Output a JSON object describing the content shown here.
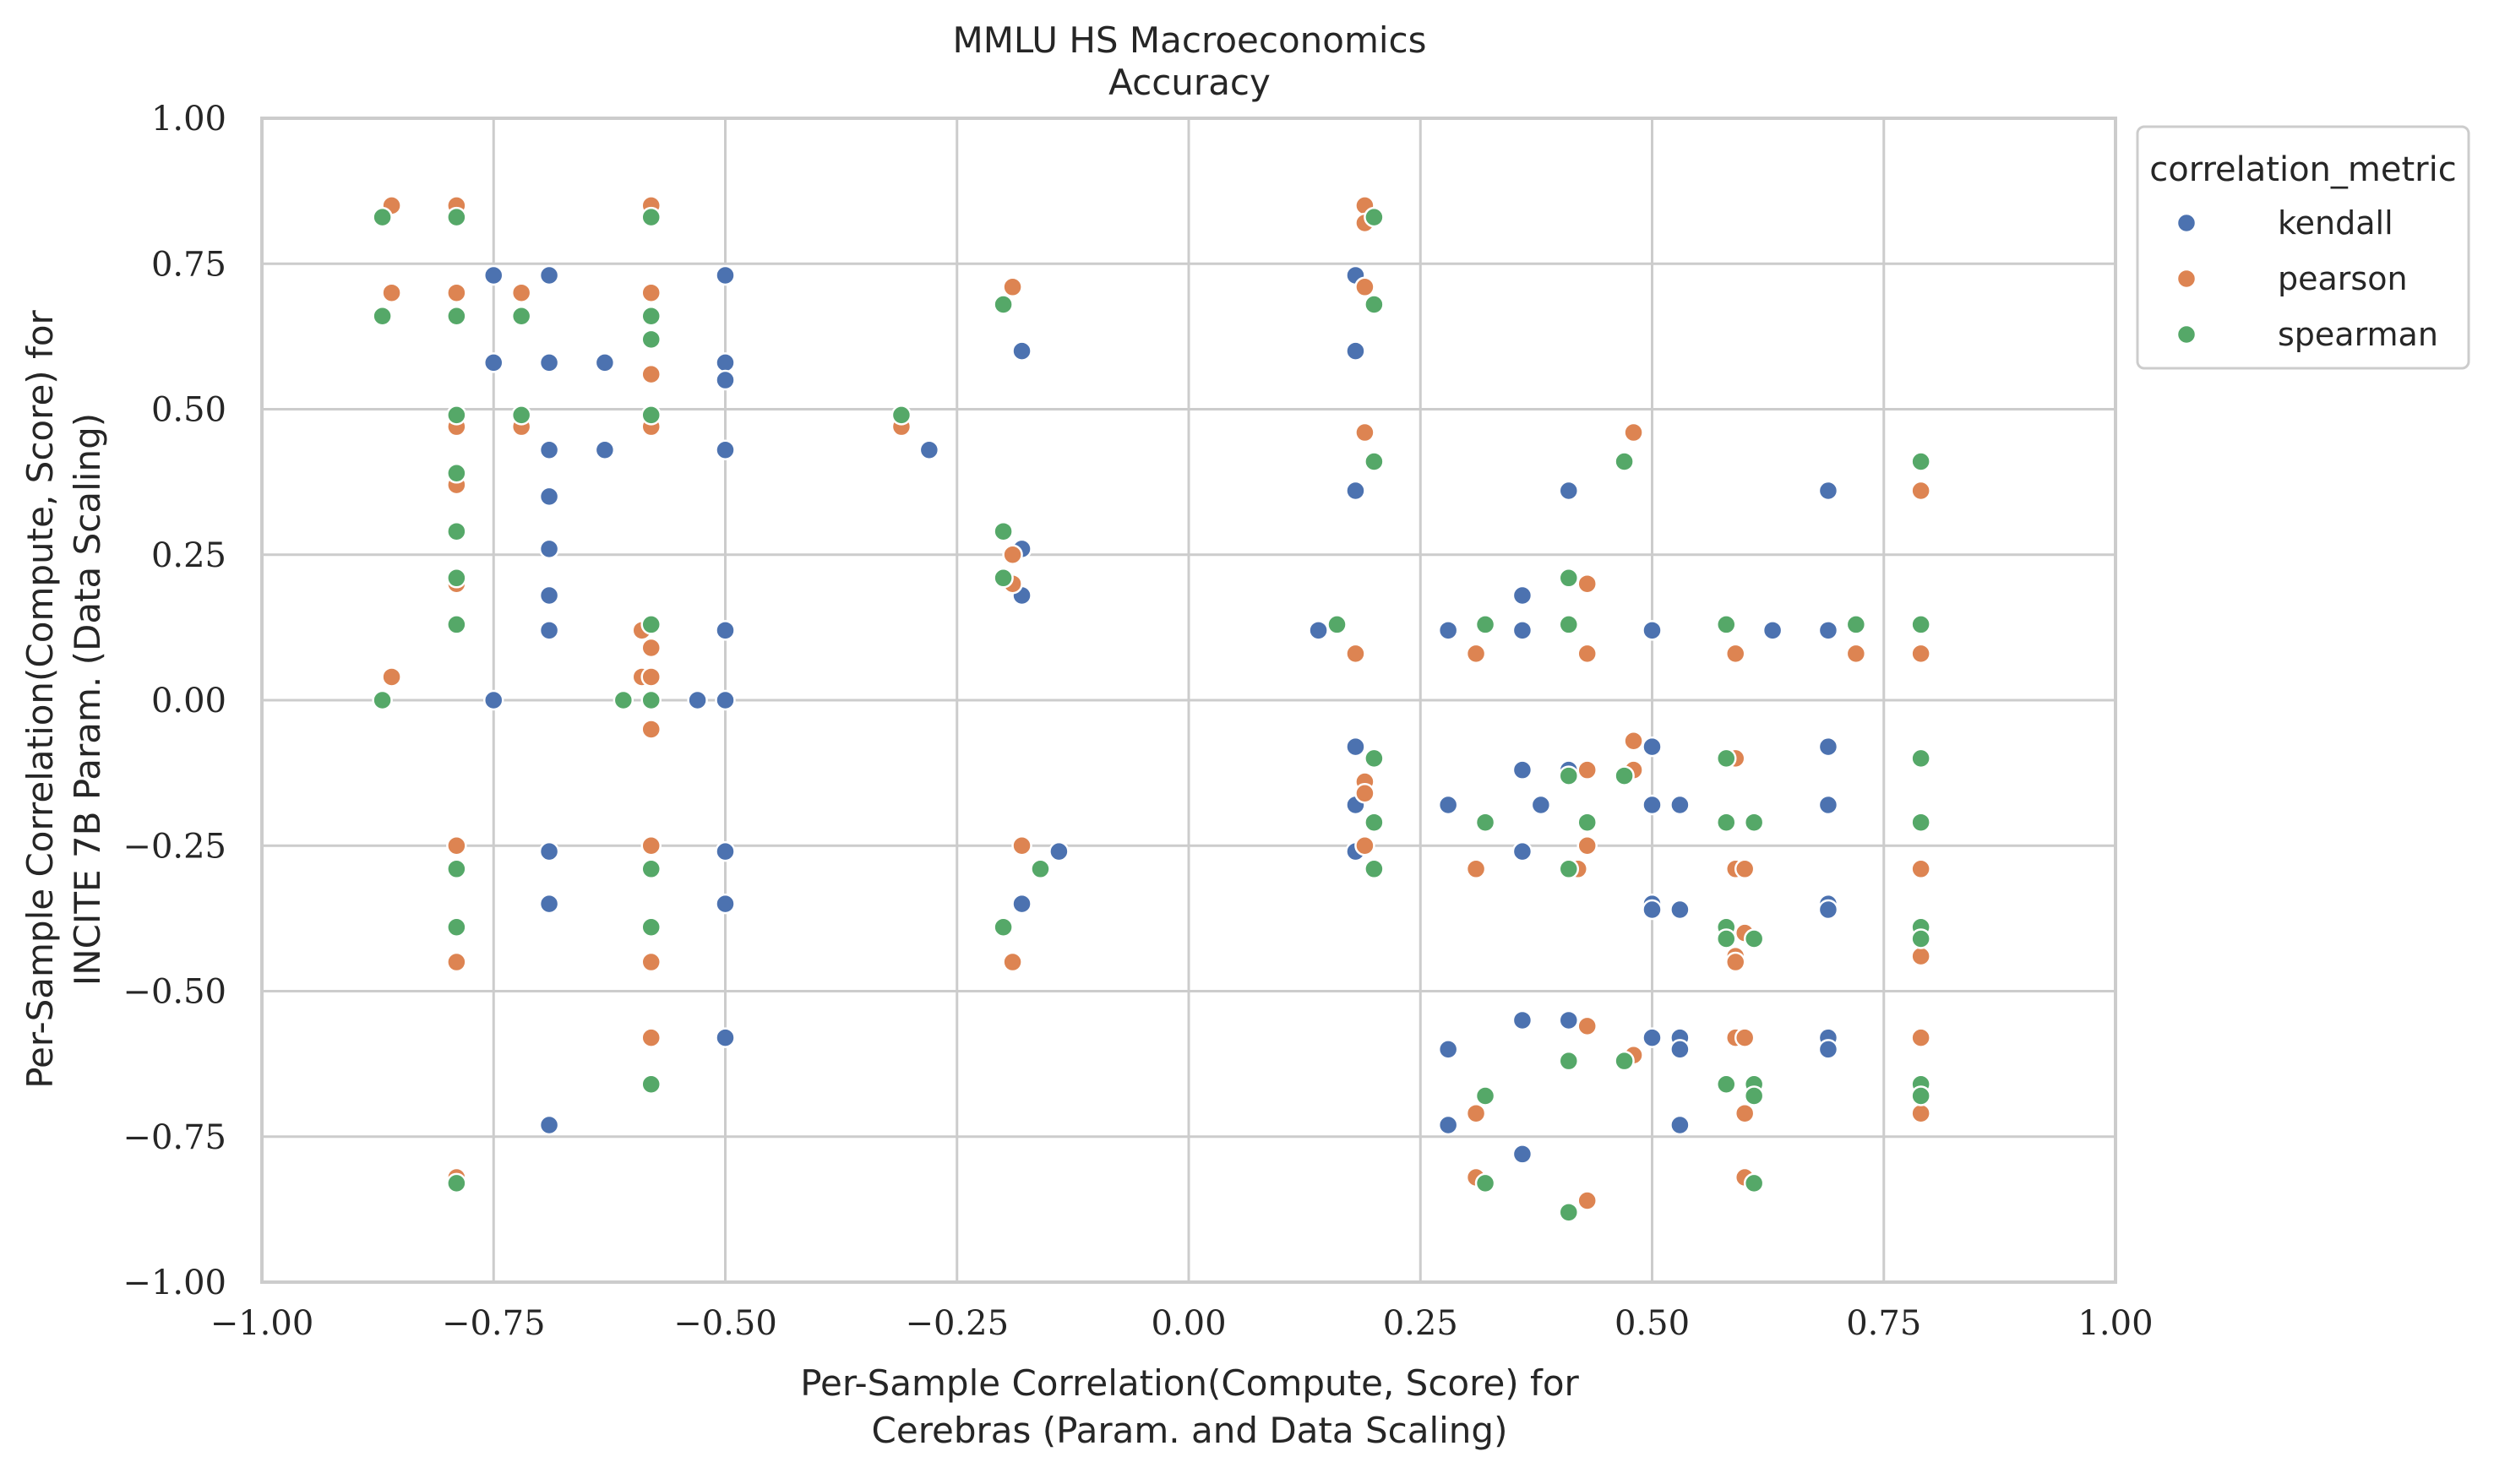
{
  "chart_data": {
    "type": "scatter",
    "title_lines": [
      "MMLU HS Macroeconomics",
      "Accuracy"
    ],
    "xlabel_lines": [
      "Per-Sample Correlation(Compute, Score) for",
      "Cerebras (Param. and Data Scaling)"
    ],
    "ylabel_lines": [
      "Per-Sample Correlation(Compute, Score) for",
      "INCITE 7B Param. (Data Scaling)"
    ],
    "xlim": [
      -1.0,
      1.0
    ],
    "ylim": [
      -1.0,
      1.0
    ],
    "xticks": [
      -1.0,
      -0.75,
      -0.5,
      -0.25,
      0.0,
      0.25,
      0.5,
      0.75,
      1.0
    ],
    "yticks": [
      -1.0,
      -0.75,
      -0.5,
      -0.25,
      0.0,
      0.25,
      0.5,
      0.75,
      1.0
    ],
    "xtick_labels": [
      "−1.00",
      "−0.75",
      "−0.50",
      "−0.25",
      "0.00",
      "0.25",
      "0.50",
      "0.75",
      "1.00"
    ],
    "ytick_labels": [
      "−1.00",
      "−0.75",
      "−0.50",
      "−0.25",
      "0.00",
      "0.25",
      "0.50",
      "0.75",
      "1.00"
    ],
    "grid": true,
    "legend": {
      "title": "correlation_metric",
      "placement": "outside-top-right"
    },
    "series": [
      {
        "name": "kendall",
        "color": "#4c72b0",
        "points": [
          [
            -0.75,
            0.73
          ],
          [
            -0.69,
            0.73
          ],
          [
            -0.5,
            0.73
          ],
          [
            -0.75,
            0.58
          ],
          [
            -0.69,
            0.58
          ],
          [
            -0.63,
            0.58
          ],
          [
            -0.5,
            0.58
          ],
          [
            -0.5,
            0.55
          ],
          [
            -0.69,
            0.43
          ],
          [
            -0.63,
            0.43
          ],
          [
            -0.5,
            0.43
          ],
          [
            -0.69,
            0.35
          ],
          [
            -0.69,
            0.26
          ],
          [
            -0.69,
            0.18
          ],
          [
            -0.69,
            0.12
          ],
          [
            -0.5,
            0.12
          ],
          [
            -0.75,
            0.0
          ],
          [
            -0.53,
            0.0
          ],
          [
            -0.5,
            0.0
          ],
          [
            -0.69,
            -0.26
          ],
          [
            -0.5,
            -0.26
          ],
          [
            -0.69,
            -0.35
          ],
          [
            -0.5,
            -0.35
          ],
          [
            -0.5,
            -0.58
          ],
          [
            -0.69,
            -0.73
          ],
          [
            -0.28,
            0.43
          ],
          [
            -0.18,
            0.6
          ],
          [
            -0.18,
            0.26
          ],
          [
            -0.18,
            0.18
          ],
          [
            -0.14,
            -0.26
          ],
          [
            -0.18,
            -0.35
          ],
          [
            0.18,
            0.73
          ],
          [
            0.18,
            0.6
          ],
          [
            0.18,
            0.36
          ],
          [
            0.14,
            0.12
          ],
          [
            0.18,
            -0.08
          ],
          [
            0.18,
            -0.18
          ],
          [
            0.18,
            -0.26
          ],
          [
            0.28,
            0.12
          ],
          [
            0.28,
            -0.18
          ],
          [
            0.28,
            -0.6
          ],
          [
            0.28,
            -0.73
          ],
          [
            0.36,
            0.18
          ],
          [
            0.36,
            0.12
          ],
          [
            0.36,
            -0.12
          ],
          [
            0.36,
            -0.26
          ],
          [
            0.38,
            -0.18
          ],
          [
            0.36,
            -0.55
          ],
          [
            0.36,
            -0.78
          ],
          [
            0.41,
            0.36
          ],
          [
            0.41,
            -0.12
          ],
          [
            0.41,
            -0.55
          ],
          [
            0.5,
            0.12
          ],
          [
            0.5,
            -0.08
          ],
          [
            0.5,
            -0.18
          ],
          [
            0.5,
            -0.35
          ],
          [
            0.5,
            -0.36
          ],
          [
            0.53,
            -0.18
          ],
          [
            0.53,
            -0.36
          ],
          [
            0.5,
            -0.58
          ],
          [
            0.53,
            -0.58
          ],
          [
            0.53,
            -0.6
          ],
          [
            0.53,
            -0.73
          ],
          [
            0.63,
            0.12
          ],
          [
            0.69,
            0.36
          ],
          [
            0.69,
            0.12
          ],
          [
            0.69,
            -0.08
          ],
          [
            0.69,
            -0.18
          ],
          [
            0.69,
            -0.35
          ],
          [
            0.69,
            -0.36
          ],
          [
            0.69,
            -0.58
          ],
          [
            0.69,
            -0.6
          ]
        ]
      },
      {
        "name": "pearson",
        "color": "#dd8452",
        "points": [
          [
            -0.86,
            0.85
          ],
          [
            -0.79,
            0.85
          ],
          [
            -0.58,
            0.85
          ],
          [
            -0.86,
            0.7
          ],
          [
            -0.79,
            0.7
          ],
          [
            -0.72,
            0.7
          ],
          [
            -0.58,
            0.7
          ],
          [
            -0.58,
            0.56
          ],
          [
            -0.79,
            0.47
          ],
          [
            -0.72,
            0.47
          ],
          [
            -0.58,
            0.47
          ],
          [
            -0.79,
            0.38
          ],
          [
            -0.79,
            0.37
          ],
          [
            -0.79,
            0.2
          ],
          [
            -0.79,
            0.13
          ],
          [
            -0.59,
            0.12
          ],
          [
            -0.58,
            0.09
          ],
          [
            -0.86,
            0.04
          ],
          [
            -0.59,
            0.04
          ],
          [
            -0.58,
            0.04
          ],
          [
            -0.58,
            -0.05
          ],
          [
            -0.79,
            -0.25
          ],
          [
            -0.58,
            -0.25
          ],
          [
            -0.79,
            -0.45
          ],
          [
            -0.58,
            -0.45
          ],
          [
            -0.58,
            -0.58
          ],
          [
            -0.79,
            -0.82
          ],
          [
            -0.31,
            0.47
          ],
          [
            -0.19,
            0.71
          ],
          [
            -0.19,
            0.25
          ],
          [
            -0.19,
            0.2
          ],
          [
            -0.18,
            -0.25
          ],
          [
            -0.19,
            -0.45
          ],
          [
            0.19,
            0.85
          ],
          [
            0.19,
            0.82
          ],
          [
            0.19,
            0.71
          ],
          [
            0.19,
            0.46
          ],
          [
            0.18,
            0.08
          ],
          [
            0.19,
            -0.14
          ],
          [
            0.19,
            -0.16
          ],
          [
            0.19,
            -0.25
          ],
          [
            0.31,
            0.08
          ],
          [
            0.31,
            -0.29
          ],
          [
            0.31,
            -0.71
          ],
          [
            0.31,
            -0.82
          ],
          [
            0.43,
            0.2
          ],
          [
            0.43,
            0.08
          ],
          [
            0.43,
            -0.12
          ],
          [
            0.43,
            -0.25
          ],
          [
            0.42,
            -0.29
          ],
          [
            0.43,
            -0.56
          ],
          [
            0.43,
            -0.86
          ],
          [
            0.48,
            0.46
          ],
          [
            0.48,
            -0.07
          ],
          [
            0.48,
            -0.12
          ],
          [
            0.48,
            -0.61
          ],
          [
            0.59,
            0.08
          ],
          [
            0.59,
            -0.1
          ],
          [
            0.59,
            -0.29
          ],
          [
            0.6,
            -0.29
          ],
          [
            0.6,
            -0.4
          ],
          [
            0.59,
            -0.44
          ],
          [
            0.59,
            -0.45
          ],
          [
            0.59,
            -0.58
          ],
          [
            0.6,
            -0.58
          ],
          [
            0.6,
            -0.71
          ],
          [
            0.6,
            -0.82
          ],
          [
            0.72,
            0.08
          ],
          [
            0.79,
            0.36
          ],
          [
            0.79,
            0.08
          ],
          [
            0.79,
            -0.29
          ],
          [
            0.79,
            -0.44
          ],
          [
            0.79,
            -0.58
          ],
          [
            0.79,
            -0.71
          ]
        ]
      },
      {
        "name": "spearman",
        "color": "#55a868",
        "points": [
          [
            -0.87,
            0.83
          ],
          [
            -0.79,
            0.83
          ],
          [
            -0.58,
            0.83
          ],
          [
            -0.87,
            0.66
          ],
          [
            -0.79,
            0.66
          ],
          [
            -0.72,
            0.66
          ],
          [
            -0.58,
            0.66
          ],
          [
            -0.58,
            0.62
          ],
          [
            -0.79,
            0.49
          ],
          [
            -0.72,
            0.49
          ],
          [
            -0.58,
            0.49
          ],
          [
            -0.79,
            0.39
          ],
          [
            -0.79,
            0.29
          ],
          [
            -0.79,
            0.21
          ],
          [
            -0.79,
            0.13
          ],
          [
            -0.58,
            0.13
          ],
          [
            -0.87,
            0.0
          ],
          [
            -0.61,
            0.0
          ],
          [
            -0.58,
            0.0
          ],
          [
            -0.79,
            -0.29
          ],
          [
            -0.58,
            -0.29
          ],
          [
            -0.79,
            -0.39
          ],
          [
            -0.58,
            -0.39
          ],
          [
            -0.58,
            -0.66
          ],
          [
            -0.79,
            -0.83
          ],
          [
            -0.31,
            0.49
          ],
          [
            -0.2,
            0.68
          ],
          [
            -0.2,
            0.29
          ],
          [
            -0.2,
            0.21
          ],
          [
            -0.16,
            -0.29
          ],
          [
            -0.2,
            -0.39
          ],
          [
            0.2,
            0.83
          ],
          [
            0.2,
            0.68
          ],
          [
            0.2,
            0.41
          ],
          [
            0.16,
            0.13
          ],
          [
            0.2,
            -0.1
          ],
          [
            0.2,
            -0.21
          ],
          [
            0.2,
            -0.29
          ],
          [
            0.32,
            0.13
          ],
          [
            0.32,
            -0.21
          ],
          [
            0.32,
            -0.68
          ],
          [
            0.32,
            -0.83
          ],
          [
            0.41,
            0.21
          ],
          [
            0.41,
            0.13
          ],
          [
            0.41,
            -0.13
          ],
          [
            0.41,
            -0.29
          ],
          [
            0.43,
            -0.21
          ],
          [
            0.41,
            -0.62
          ],
          [
            0.41,
            -0.88
          ],
          [
            0.47,
            0.41
          ],
          [
            0.47,
            -0.13
          ],
          [
            0.47,
            -0.62
          ],
          [
            0.58,
            0.13
          ],
          [
            0.58,
            -0.1
          ],
          [
            0.58,
            -0.21
          ],
          [
            0.58,
            -0.39
          ],
          [
            0.58,
            -0.41
          ],
          [
            0.61,
            -0.21
          ],
          [
            0.61,
            -0.41
          ],
          [
            0.58,
            -0.66
          ],
          [
            0.61,
            -0.66
          ],
          [
            0.61,
            -0.68
          ],
          [
            0.61,
            -0.83
          ],
          [
            0.72,
            0.13
          ],
          [
            0.79,
            0.41
          ],
          [
            0.79,
            0.13
          ],
          [
            0.79,
            -0.1
          ],
          [
            0.79,
            -0.21
          ],
          [
            0.79,
            -0.39
          ],
          [
            0.79,
            -0.41
          ],
          [
            0.79,
            -0.66
          ],
          [
            0.79,
            -0.68
          ]
        ]
      }
    ]
  }
}
